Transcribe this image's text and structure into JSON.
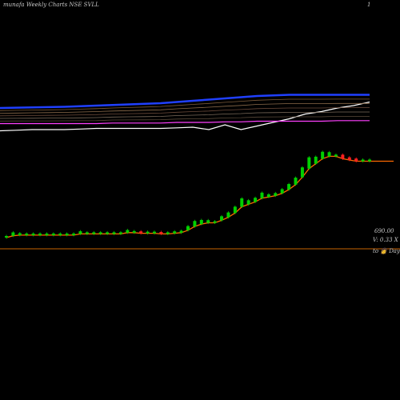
{
  "header": {
    "title": "munafa Weekly Charts NSE SVLL",
    "page_marker": "1"
  },
  "labels": {
    "price": "690.00",
    "volume": "V: 0.33 X",
    "days_label": "to 👩 Days"
  },
  "colors": {
    "background": "#000000",
    "price_line": "#ff6a00",
    "up_candle": "#00d000",
    "down_candle": "#ff2020",
    "axis_line": "#c86400",
    "ma_top": "#2040ff",
    "ma_magenta": "#ff40ff",
    "ma_white": "#ffffff"
  },
  "chart_data": {
    "type": "line",
    "title": "munafa Weekly Charts NSE SVLL",
    "xlabel": "",
    "ylabel": "",
    "last_price_label": "690.00",
    "price_series": [
      {
        "name": "",
        "values": [
          100,
          103,
          104,
          104,
          104,
          104,
          104,
          104,
          104,
          104,
          104,
          106,
          106,
          106,
          106,
          106,
          106,
          106,
          108,
          108,
          107,
          107,
          107,
          106,
          106,
          107,
          108,
          112,
          118,
          122,
          124,
          124,
          128,
          133,
          140,
          150,
          154,
          158,
          164,
          166,
          168,
          172,
          178,
          186,
          198,
          212,
          220,
          228,
          232,
          232,
          228,
          226,
          224,
          224,
          224
        ]
      }
    ],
    "moving_average_series": [
      {
        "name": "",
        "color": "#2040ff",
        "values": [
          100,
          100.5,
          101,
          101.5,
          102,
          103,
          104,
          105,
          106,
          107,
          108,
          110,
          112,
          114,
          116,
          118,
          120,
          121,
          122,
          122,
          122,
          122,
          122,
          122
        ]
      },
      {
        "name": "",
        "color": "#ffffff",
        "values": [
          62,
          63,
          64,
          64,
          64,
          65,
          66,
          66,
          66,
          66,
          66,
          67,
          68,
          64,
          72,
          64,
          70,
          76,
          82,
          90,
          94,
          100,
          104,
          110
        ]
      },
      {
        "name": "",
        "color": "#ff40ff",
        "values": [
          74,
          74,
          74,
          74,
          74,
          74,
          74,
          75,
          75,
          75,
          75,
          76,
          76,
          76,
          77,
          77,
          78,
          78,
          78,
          78,
          78,
          79,
          79,
          79
        ]
      }
    ]
  }
}
